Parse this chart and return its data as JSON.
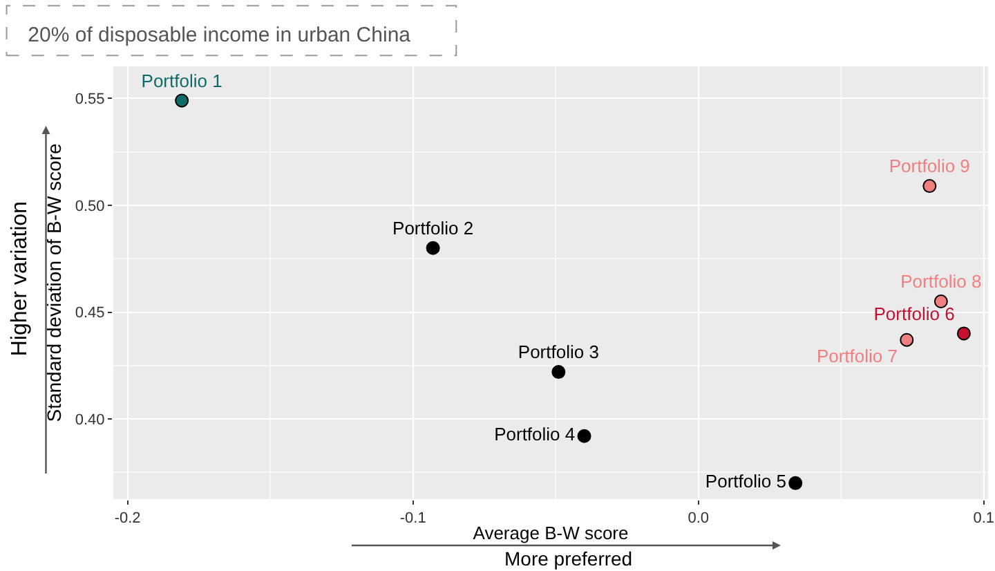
{
  "chart_data": {
    "type": "scatter",
    "title": "20% of disposable income in urban China",
    "xlabel": "Average B-W score",
    "ylabel": "Standard deviation of B-W score",
    "annotations": [
      "Higher variation",
      "More preferred"
    ],
    "series": [
      {
        "name": "Portfolio 1",
        "color": "#0f6b68",
        "x": [
          -0.181
        ],
        "values": [
          0.549
        ]
      },
      {
        "name": "Portfolio 2",
        "color": "#000000",
        "x": [
          -0.093
        ],
        "values": [
          0.48
        ]
      },
      {
        "name": "Portfolio 3",
        "color": "#000000",
        "x": [
          -0.049
        ],
        "values": [
          0.422
        ]
      },
      {
        "name": "Portfolio 4",
        "color": "#000000",
        "x": [
          -0.04
        ],
        "values": [
          0.392
        ]
      },
      {
        "name": "Portfolio 5",
        "color": "#000000",
        "x": [
          0.034
        ],
        "values": [
          0.37
        ]
      },
      {
        "name": "Portfolio 6",
        "color": "#c8102e",
        "x": [
          0.093
        ],
        "values": [
          0.44
        ]
      },
      {
        "name": "Portfolio 7",
        "color": "#f08080",
        "x": [
          0.073
        ],
        "values": [
          0.437
        ]
      },
      {
        "name": "Portfolio 8",
        "color": "#f08080",
        "x": [
          0.085
        ],
        "values": [
          0.455
        ]
      },
      {
        "name": "Portfolio 9",
        "color": "#f08080",
        "x": [
          0.081
        ],
        "values": [
          0.509
        ]
      }
    ],
    "xlim": [
      -0.205,
      0.1015
    ],
    "ylim": [
      0.3625,
      0.565
    ],
    "xticks": [
      -0.2,
      -0.1,
      {
        "value": 0,
        "label": "0.0"
      },
      0.1
    ],
    "yticks": [
      {
        "value": 0.4,
        "label": "0.40"
      },
      {
        "value": 0.45,
        "label": "0.45"
      },
      {
        "value": 0.5,
        "label": "0.50"
      },
      {
        "value": 0.55,
        "label": "0.55"
      }
    ],
    "grid": true,
    "legend": false,
    "marker": "circle"
  }
}
